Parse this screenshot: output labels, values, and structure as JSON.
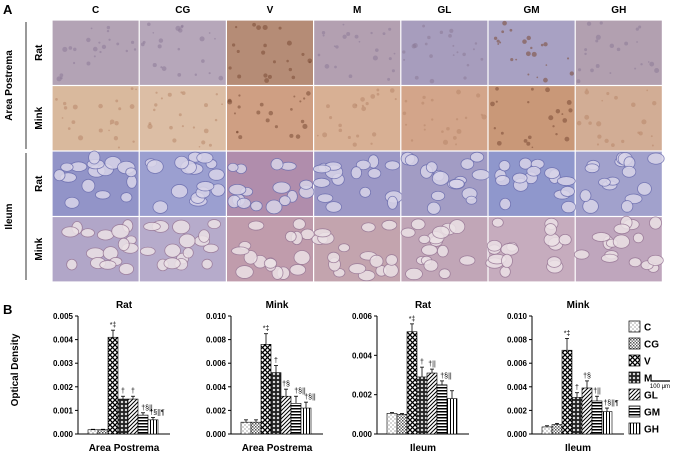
{
  "panel_a": {
    "letter": "A",
    "columns": [
      "C",
      "CG",
      "V",
      "M",
      "GL",
      "GM",
      "GH"
    ],
    "regions": [
      {
        "label": "Area Postrema",
        "rows": [
          "Rat",
          "Mink"
        ]
      },
      {
        "label": "Ileum",
        "rows": [
          "Rat",
          "Mink"
        ]
      }
    ],
    "scale_bar": "100 μm",
    "tile_colors": [
      [
        "#b3a3b5",
        "#b6a7ba",
        "#b58c76",
        "#b3a0b1",
        "#a79dbd",
        "#a8a1c3",
        "#b2a0b0"
      ],
      [
        "#d9b99d",
        "#dcbea5",
        "#cf9f83",
        "#d8b094",
        "#d3a58a",
        "#c99878",
        "#d2ad95"
      ],
      [
        "#9294c8",
        "#9b9fd0",
        "#b08dac",
        "#9c98c6",
        "#a29cc4",
        "#8f97cc",
        "#a1a1cc"
      ],
      [
        "#b1a6c8",
        "#b6abcb",
        "#c09cac",
        "#c3a4ae",
        "#c1a6b7",
        "#c6acbe",
        "#bfa6bd"
      ]
    ]
  },
  "panel_b": {
    "letter": "B",
    "ylabel": "Optical Density",
    "legend": [
      {
        "label": "C",
        "pattern": "dots"
      },
      {
        "label": "CG",
        "pattern": "grid"
      },
      {
        "label": "V",
        "pattern": "cross"
      },
      {
        "label": "M",
        "pattern": "diamond"
      },
      {
        "label": "GL",
        "pattern": "diag"
      },
      {
        "label": "GM",
        "pattern": "hline"
      },
      {
        "label": "GH",
        "pattern": "vline"
      }
    ]
  },
  "chart_data": [
    {
      "type": "bar",
      "title": "Rat",
      "xlabel": "Area Postrema",
      "categories": [
        "C",
        "CG",
        "V",
        "M",
        "GL",
        "GM",
        "GH"
      ],
      "values": [
        0.00018,
        0.00018,
        0.0041,
        0.00148,
        0.00148,
        0.0008,
        0.0006
      ],
      "errors": [
        2e-05,
        2e-05,
        0.0003,
        0.00012,
        0.00012,
        0.0001,
        0.0001
      ],
      "annotations": [
        "",
        "",
        "*‡",
        "†",
        "†",
        "†§||",
        "†§||¶"
      ],
      "ylim": [
        0,
        0.005
      ],
      "yticks": [
        "0.000",
        "0.001",
        "0.002",
        "0.003",
        "0.004",
        "0.005"
      ]
    },
    {
      "type": "bar",
      "title": "Mink",
      "xlabel": "Area Postrema",
      "categories": [
        "C",
        "CG",
        "V",
        "M",
        "GL",
        "GM",
        "GH"
      ],
      "values": [
        0.001,
        0.001,
        0.0076,
        0.0052,
        0.0032,
        0.0026,
        0.0022
      ],
      "errors": [
        0.0002,
        0.0002,
        0.0009,
        0.0006,
        0.0006,
        0.0006,
        0.0005
      ],
      "annotations": [
        "",
        "",
        "*‡",
        "†",
        "†§",
        "†§||",
        "†§||"
      ],
      "ylim": [
        0,
        0.01
      ],
      "yticks": [
        "0.000",
        "0.002",
        "0.004",
        "0.006",
        "0.008",
        "0.010"
      ]
    },
    {
      "type": "bar",
      "title": "Rat",
      "xlabel": "Ileum",
      "categories": [
        "C",
        "CG",
        "V",
        "M",
        "GL",
        "GM",
        "GH"
      ],
      "values": [
        0.00105,
        0.001,
        0.0052,
        0.0029,
        0.0031,
        0.0025,
        0.0018
      ],
      "errors": [
        4e-05,
        4e-05,
        0.0004,
        0.0005,
        0.0002,
        0.0002,
        0.0004
      ],
      "annotations": [
        "",
        "",
        "*‡",
        "†",
        "†||",
        "†§||",
        ""
      ],
      "ylim": [
        0,
        0.006
      ],
      "yticks": [
        "0.000",
        "0.002",
        "0.004",
        "0.006"
      ]
    },
    {
      "type": "bar",
      "title": "Mink",
      "xlabel": "Ileum",
      "categories": [
        "C",
        "CG",
        "V",
        "M",
        "GL",
        "GM",
        "GH"
      ],
      "values": [
        0.0006,
        0.0008,
        0.0071,
        0.0031,
        0.0039,
        0.0028,
        0.0019
      ],
      "errors": [
        0.0001,
        0.0001,
        0.001,
        0.0004,
        0.0006,
        0.0004,
        0.0003
      ],
      "annotations": [
        "",
        "",
        "*‡",
        "†",
        "†§",
        "†||",
        "†§||¶"
      ],
      "ylim": [
        0,
        0.01
      ],
      "yticks": [
        "0.000",
        "0.002",
        "0.004",
        "0.006",
        "0.008",
        "0.010"
      ]
    }
  ]
}
